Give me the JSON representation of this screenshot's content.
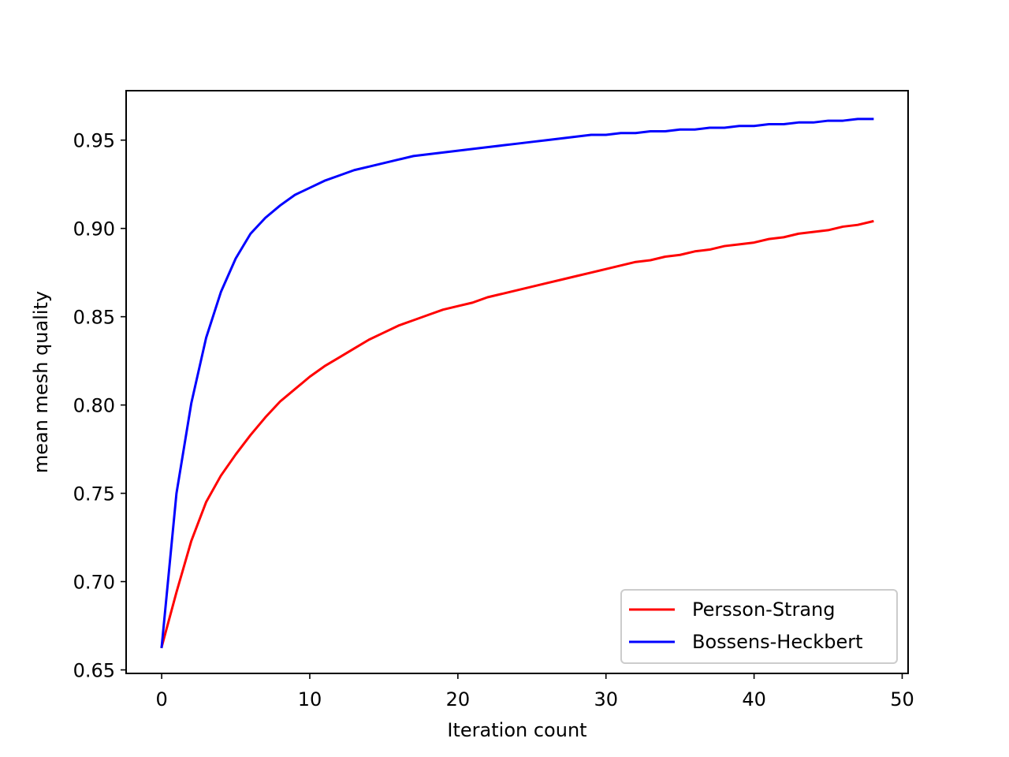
{
  "chart_data": {
    "type": "line",
    "title": "",
    "xlabel": "Iteration count",
    "ylabel": "mean mesh quality",
    "xlim": [
      -2.4,
      50.4
    ],
    "ylim": [
      0.648,
      0.978
    ],
    "x_ticks": [
      0,
      10,
      20,
      30,
      40,
      50
    ],
    "y_ticks": [
      0.65,
      0.7,
      0.75,
      0.8,
      0.85,
      0.9,
      0.95
    ],
    "grid": false,
    "legend_position": "bottom-right",
    "x": [
      0,
      1,
      2,
      3,
      4,
      5,
      6,
      7,
      8,
      9,
      10,
      11,
      12,
      13,
      14,
      15,
      16,
      17,
      18,
      19,
      20,
      21,
      22,
      23,
      24,
      25,
      26,
      27,
      28,
      29,
      30,
      31,
      32,
      33,
      34,
      35,
      36,
      37,
      38,
      39,
      40,
      41,
      42,
      43,
      44,
      45,
      46,
      47,
      48
    ],
    "series": [
      {
        "name": "Persson-Strang",
        "color": "#ff0000",
        "values": [
          0.663,
          0.694,
          0.723,
          0.745,
          0.76,
          0.772,
          0.783,
          0.793,
          0.802,
          0.809,
          0.816,
          0.822,
          0.827,
          0.832,
          0.837,
          0.841,
          0.845,
          0.848,
          0.851,
          0.854,
          0.856,
          0.858,
          0.861,
          0.863,
          0.865,
          0.867,
          0.869,
          0.871,
          0.873,
          0.875,
          0.877,
          0.879,
          0.881,
          0.882,
          0.884,
          0.885,
          0.887,
          0.888,
          0.89,
          0.891,
          0.892,
          0.894,
          0.895,
          0.897,
          0.898,
          0.899,
          0.901,
          0.902,
          0.904
        ]
      },
      {
        "name": "Bossens-Heckbert",
        "color": "#0000ff",
        "values": [
          0.663,
          0.75,
          0.801,
          0.838,
          0.864,
          0.883,
          0.897,
          0.906,
          0.913,
          0.919,
          0.923,
          0.927,
          0.93,
          0.933,
          0.935,
          0.937,
          0.939,
          0.941,
          0.942,
          0.943,
          0.944,
          0.945,
          0.946,
          0.947,
          0.948,
          0.949,
          0.95,
          0.951,
          0.952,
          0.953,
          0.953,
          0.954,
          0.954,
          0.955,
          0.955,
          0.956,
          0.956,
          0.957,
          0.957,
          0.958,
          0.958,
          0.959,
          0.959,
          0.96,
          0.96,
          0.961,
          0.961,
          0.962,
          0.962
        ]
      }
    ]
  }
}
